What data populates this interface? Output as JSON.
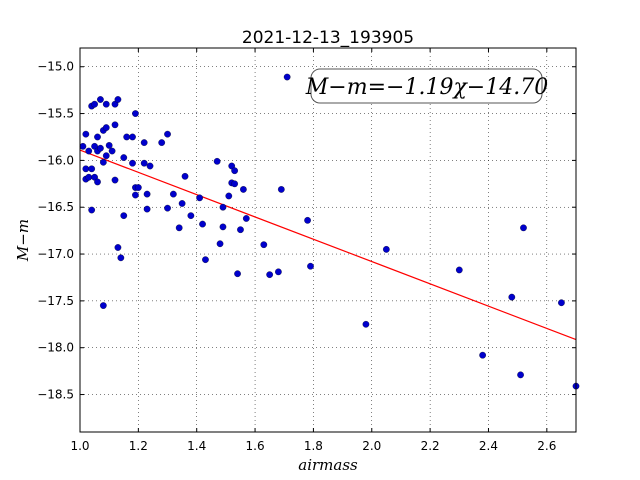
{
  "chart_data": {
    "type": "scatter",
    "title": "2021-12-13_193905",
    "xlabel": "airmass",
    "ylabel": "M−m",
    "xlim": [
      1.0,
      2.7
    ],
    "ylim": [
      -18.9,
      -14.8
    ],
    "x_ticks": [
      1.0,
      1.2,
      1.4,
      1.6,
      1.8,
      2.0,
      2.2,
      2.4,
      2.6
    ],
    "x_tick_labels": [
      "1.0",
      "1.2",
      "1.4",
      "1.6",
      "1.8",
      "2.0",
      "2.2",
      "2.4",
      "2.6"
    ],
    "y_ticks": [
      -15.0,
      -15.5,
      -16.0,
      -16.5,
      -17.0,
      -17.5,
      -18.0,
      -18.5
    ],
    "y_tick_labels": [
      "−15.0",
      "−15.5",
      "−16.0",
      "−16.5",
      "−17.0",
      "−17.5",
      "−18.0",
      "−18.5"
    ],
    "grid": true,
    "annotation": "M−m=−1.19χ−14.70",
    "fit": {
      "slope": -1.19,
      "intercept": -14.7,
      "color": "#ff0000"
    },
    "point_color": "#0000cc",
    "points": [
      {
        "x": 1.01,
        "y": -15.85
      },
      {
        "x": 1.02,
        "y": -15.72
      },
      {
        "x": 1.02,
        "y": -16.09
      },
      {
        "x": 1.02,
        "y": -16.2
      },
      {
        "x": 1.03,
        "y": -15.9
      },
      {
        "x": 1.03,
        "y": -16.18
      },
      {
        "x": 1.04,
        "y": -16.09
      },
      {
        "x": 1.04,
        "y": -16.53
      },
      {
        "x": 1.04,
        "y": -15.42
      },
      {
        "x": 1.05,
        "y": -16.18
      },
      {
        "x": 1.05,
        "y": -15.85
      },
      {
        "x": 1.05,
        "y": -15.4
      },
      {
        "x": 1.06,
        "y": -15.75
      },
      {
        "x": 1.06,
        "y": -15.9
      },
      {
        "x": 1.06,
        "y": -16.23
      },
      {
        "x": 1.07,
        "y": -15.35
      },
      {
        "x": 1.07,
        "y": -15.87
      },
      {
        "x": 1.08,
        "y": -16.02
      },
      {
        "x": 1.08,
        "y": -15.68
      },
      {
        "x": 1.08,
        "y": -17.55
      },
      {
        "x": 1.09,
        "y": -15.65
      },
      {
        "x": 1.09,
        "y": -15.4
      },
      {
        "x": 1.09,
        "y": -15.95
      },
      {
        "x": 1.1,
        "y": -15.84
      },
      {
        "x": 1.11,
        "y": -15.9
      },
      {
        "x": 1.12,
        "y": -15.62
      },
      {
        "x": 1.12,
        "y": -16.21
      },
      {
        "x": 1.12,
        "y": -15.4
      },
      {
        "x": 1.13,
        "y": -16.93
      },
      {
        "x": 1.13,
        "y": -15.35
      },
      {
        "x": 1.14,
        "y": -17.04
      },
      {
        "x": 1.15,
        "y": -16.59
      },
      {
        "x": 1.15,
        "y": -15.97
      },
      {
        "x": 1.16,
        "y": -15.75
      },
      {
        "x": 1.18,
        "y": -15.75
      },
      {
        "x": 1.18,
        "y": -16.03
      },
      {
        "x": 1.19,
        "y": -16.29
      },
      {
        "x": 1.19,
        "y": -16.37
      },
      {
        "x": 1.19,
        "y": -15.5
      },
      {
        "x": 1.2,
        "y": -16.29
      },
      {
        "x": 1.22,
        "y": -16.03
      },
      {
        "x": 1.22,
        "y": -15.81
      },
      {
        "x": 1.23,
        "y": -16.36
      },
      {
        "x": 1.23,
        "y": -16.52
      },
      {
        "x": 1.24,
        "y": -16.06
      },
      {
        "x": 1.28,
        "y": -15.81
      },
      {
        "x": 1.3,
        "y": -16.51
      },
      {
        "x": 1.3,
        "y": -15.72
      },
      {
        "x": 1.32,
        "y": -16.36
      },
      {
        "x": 1.34,
        "y": -16.72
      },
      {
        "x": 1.35,
        "y": -16.46
      },
      {
        "x": 1.36,
        "y": -16.17
      },
      {
        "x": 1.38,
        "y": -16.59
      },
      {
        "x": 1.41,
        "y": -16.4
      },
      {
        "x": 1.42,
        "y": -16.68
      },
      {
        "x": 1.43,
        "y": -17.06
      },
      {
        "x": 1.47,
        "y": -16.01
      },
      {
        "x": 1.48,
        "y": -16.89
      },
      {
        "x": 1.49,
        "y": -16.71
      },
      {
        "x": 1.49,
        "y": -16.5
      },
      {
        "x": 1.51,
        "y": -16.38
      },
      {
        "x": 1.52,
        "y": -16.06
      },
      {
        "x": 1.52,
        "y": -16.24
      },
      {
        "x": 1.53,
        "y": -16.25
      },
      {
        "x": 1.53,
        "y": -16.11
      },
      {
        "x": 1.54,
        "y": -17.21
      },
      {
        "x": 1.55,
        "y": -16.74
      },
      {
        "x": 1.56,
        "y": -16.31
      },
      {
        "x": 1.57,
        "y": -16.62
      },
      {
        "x": 1.63,
        "y": -16.9
      },
      {
        "x": 1.65,
        "y": -17.22
      },
      {
        "x": 1.68,
        "y": -17.19
      },
      {
        "x": 1.69,
        "y": -16.31
      },
      {
        "x": 1.71,
        "y": -15.11
      },
      {
        "x": 1.78,
        "y": -16.64
      },
      {
        "x": 1.79,
        "y": -17.13
      },
      {
        "x": 1.98,
        "y": -17.75
      },
      {
        "x": 2.05,
        "y": -16.95
      },
      {
        "x": 2.3,
        "y": -17.17
      },
      {
        "x": 2.38,
        "y": -18.08
      },
      {
        "x": 2.48,
        "y": -17.46
      },
      {
        "x": 2.51,
        "y": -18.29
      },
      {
        "x": 2.52,
        "y": -16.72
      },
      {
        "x": 2.65,
        "y": -17.52
      },
      {
        "x": 2.7,
        "y": -18.41
      }
    ]
  }
}
